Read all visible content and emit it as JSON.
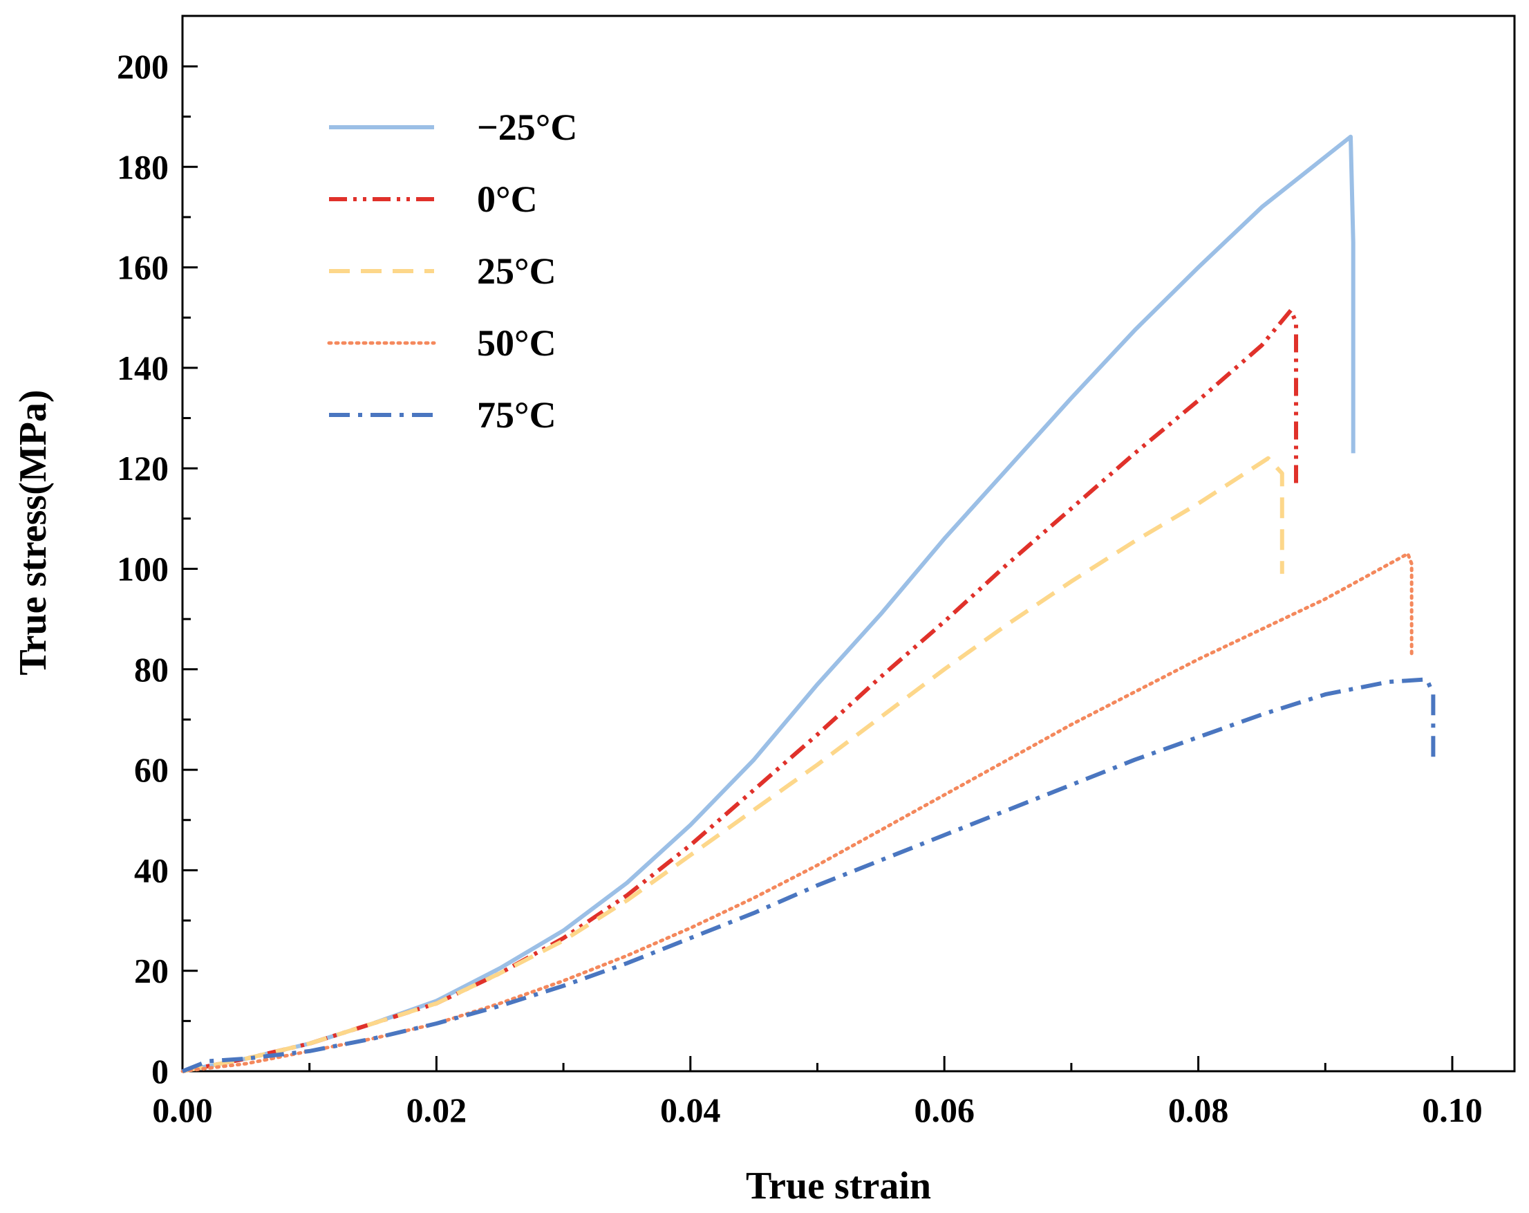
{
  "chart_data": {
    "type": "line",
    "title": "",
    "xlabel": "True strain",
    "ylabel": "True stress(MPa)",
    "xlim": [
      0.0,
      0.1
    ],
    "ylim": [
      0,
      210
    ],
    "xticks": [
      0.0,
      0.02,
      0.04,
      0.06,
      0.08,
      0.1
    ],
    "xtick_labels": [
      "0.00",
      "0.02",
      "0.04",
      "0.06",
      "0.08",
      "0.10"
    ],
    "yticks": [
      0,
      20,
      40,
      60,
      80,
      100,
      120,
      140,
      160,
      180,
      200
    ],
    "ytick_labels": [
      "0",
      "20",
      "40",
      "60",
      "80",
      "100",
      "120",
      "140",
      "160",
      "180",
      "200"
    ],
    "grid": false,
    "legend_position": "top-left",
    "series": [
      {
        "name": "−25°C",
        "color": "#9bbfe6",
        "style": "solid",
        "x": [
          0.0,
          0.005,
          0.01,
          0.015,
          0.02,
          0.025,
          0.03,
          0.035,
          0.04,
          0.045,
          0.05,
          0.055,
          0.06,
          0.065,
          0.07,
          0.075,
          0.08,
          0.085,
          0.092,
          0.0922,
          0.0922
        ],
        "y": [
          0,
          2.5,
          5.5,
          9.5,
          14,
          20.5,
          28,
          37.5,
          49,
          62,
          77,
          91,
          106,
          120,
          134,
          147.5,
          160,
          172,
          186,
          165,
          123
        ]
      },
      {
        "name": "0°C",
        "color": "#e0312a",
        "style": "dashdotdot",
        "x": [
          0.0,
          0.005,
          0.01,
          0.015,
          0.02,
          0.025,
          0.03,
          0.035,
          0.04,
          0.045,
          0.05,
          0.055,
          0.06,
          0.065,
          0.07,
          0.075,
          0.08,
          0.085,
          0.0873,
          0.0877,
          0.0877
        ],
        "y": [
          0,
          2.5,
          5.5,
          9.5,
          13.5,
          19.5,
          26.5,
          35,
          45,
          56,
          67,
          78.5,
          89.5,
          101,
          112,
          123,
          133.5,
          144.5,
          151.5,
          149,
          117
        ]
      },
      {
        "name": "25°C",
        "color": "#fdd78a",
        "style": "dashed",
        "x": [
          0.0,
          0.005,
          0.01,
          0.015,
          0.02,
          0.025,
          0.03,
          0.035,
          0.04,
          0.045,
          0.05,
          0.055,
          0.06,
          0.065,
          0.07,
          0.075,
          0.08,
          0.0855,
          0.0866,
          0.0866
        ],
        "y": [
          0,
          2.5,
          5.5,
          9.5,
          13.5,
          19.5,
          26,
          34,
          43,
          52,
          61,
          70.5,
          80,
          89,
          97.5,
          105.5,
          113,
          122,
          119,
          99
        ]
      },
      {
        "name": "50°C",
        "color": "#f4885c",
        "style": "dotted",
        "x": [
          0.0,
          0.005,
          0.01,
          0.015,
          0.02,
          0.025,
          0.03,
          0.035,
          0.04,
          0.045,
          0.05,
          0.055,
          0.06,
          0.065,
          0.07,
          0.075,
          0.08,
          0.085,
          0.09,
          0.0965,
          0.0968,
          0.0968
        ],
        "y": [
          0,
          1.5,
          4,
          6.5,
          9.5,
          13.5,
          18,
          23,
          28.5,
          34.5,
          41,
          48,
          55,
          62,
          69,
          75.5,
          82,
          88,
          94,
          103,
          101,
          83
        ]
      },
      {
        "name": "75°C",
        "color": "#4a76c0",
        "style": "dashdot",
        "x": [
          0.0,
          0.002,
          0.005,
          0.01,
          0.015,
          0.02,
          0.025,
          0.03,
          0.035,
          0.04,
          0.045,
          0.05,
          0.055,
          0.06,
          0.065,
          0.07,
          0.075,
          0.08,
          0.085,
          0.09,
          0.095,
          0.098,
          0.0985,
          0.0985
        ],
        "y": [
          0,
          2,
          2.5,
          4,
          6.5,
          9.5,
          13,
          17,
          21.5,
          26.5,
          31.5,
          37,
          42,
          47,
          52,
          57,
          62,
          66.5,
          71,
          75,
          77.5,
          78,
          75,
          62
        ]
      }
    ]
  }
}
